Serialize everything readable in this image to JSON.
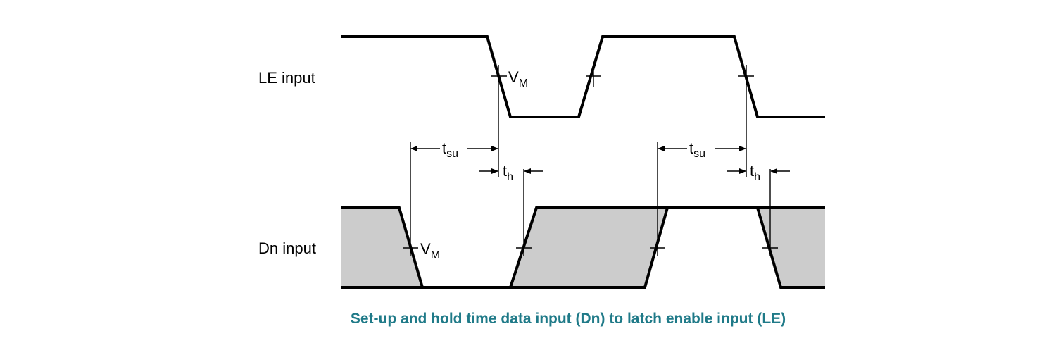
{
  "signals": {
    "le_label": "LE input",
    "dn_label": "Dn input"
  },
  "markers": {
    "vm_le": "V",
    "vm_le_sub": "M",
    "vm_dn": "V",
    "vm_dn_sub": "M",
    "tsu_1": "t",
    "tsu_1_sub": "su",
    "th_1": "t",
    "th_1_sub": "h",
    "tsu_2": "t",
    "tsu_2_sub": "su",
    "th_2": "t",
    "th_2_sub": "h"
  },
  "caption": "Set-up and hold time data input (Dn) to latch enable input (LE)",
  "colors": {
    "caption": "#1f7a88",
    "data_valid_fill": "#cccccc",
    "line": "#000000"
  }
}
